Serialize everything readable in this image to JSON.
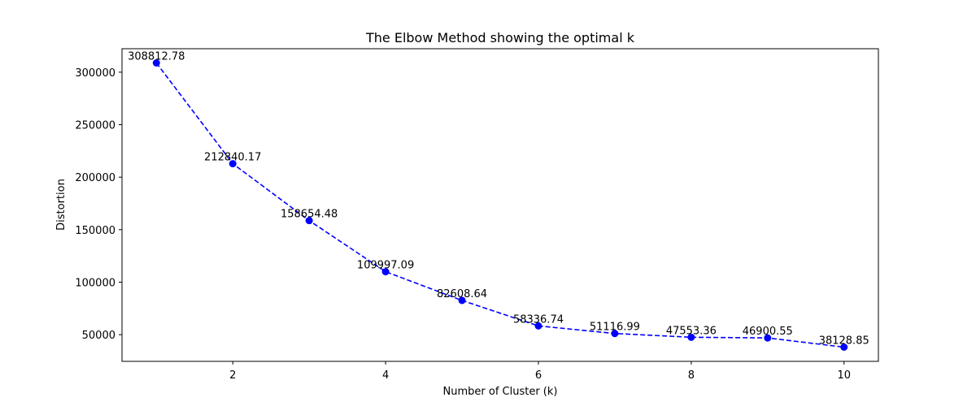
{
  "chart_data": {
    "type": "line",
    "title": "The Elbow Method showing the optimal k",
    "xlabel": "Number of Cluster (k)",
    "ylabel": "Distortion",
    "x": [
      1,
      2,
      3,
      4,
      5,
      6,
      7,
      8,
      9,
      10
    ],
    "y": [
      308812.78,
      212840.17,
      158654.48,
      109997.09,
      82608.64,
      58336.74,
      51116.99,
      47553.36,
      46900.55,
      38128.85
    ],
    "data_labels": [
      "308812.78",
      "212840.17",
      "158654.48",
      "109997.09",
      "82608.64",
      "58336.74",
      "51116.99",
      "47553.36",
      "46900.55",
      "38128.85"
    ],
    "xlim": [
      0.55,
      10.45
    ],
    "ylim": [
      24596.65,
      322344.98
    ],
    "xticks": [
      2,
      4,
      6,
      8,
      10
    ],
    "xtick_labels": [
      "2",
      "4",
      "6",
      "8",
      "10"
    ],
    "yticks": [
      50000,
      100000,
      150000,
      200000,
      250000,
      300000
    ],
    "ytick_labels": [
      "50000",
      "100000",
      "150000",
      "200000",
      "250000",
      "300000"
    ],
    "line_style": "dashed",
    "marker": "circle",
    "color": "#0000ff",
    "grid": false,
    "legend": false
  }
}
